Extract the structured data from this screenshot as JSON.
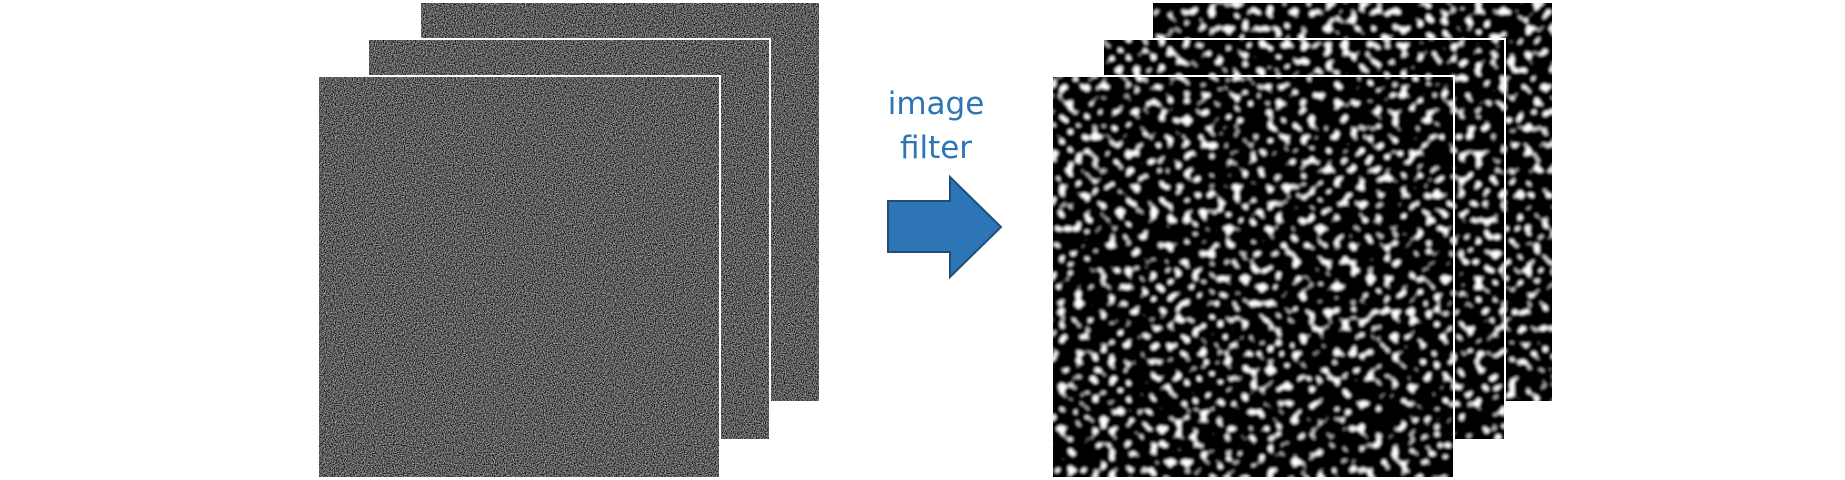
{
  "arrow_label": [
    "image",
    "filter"
  ]
}
